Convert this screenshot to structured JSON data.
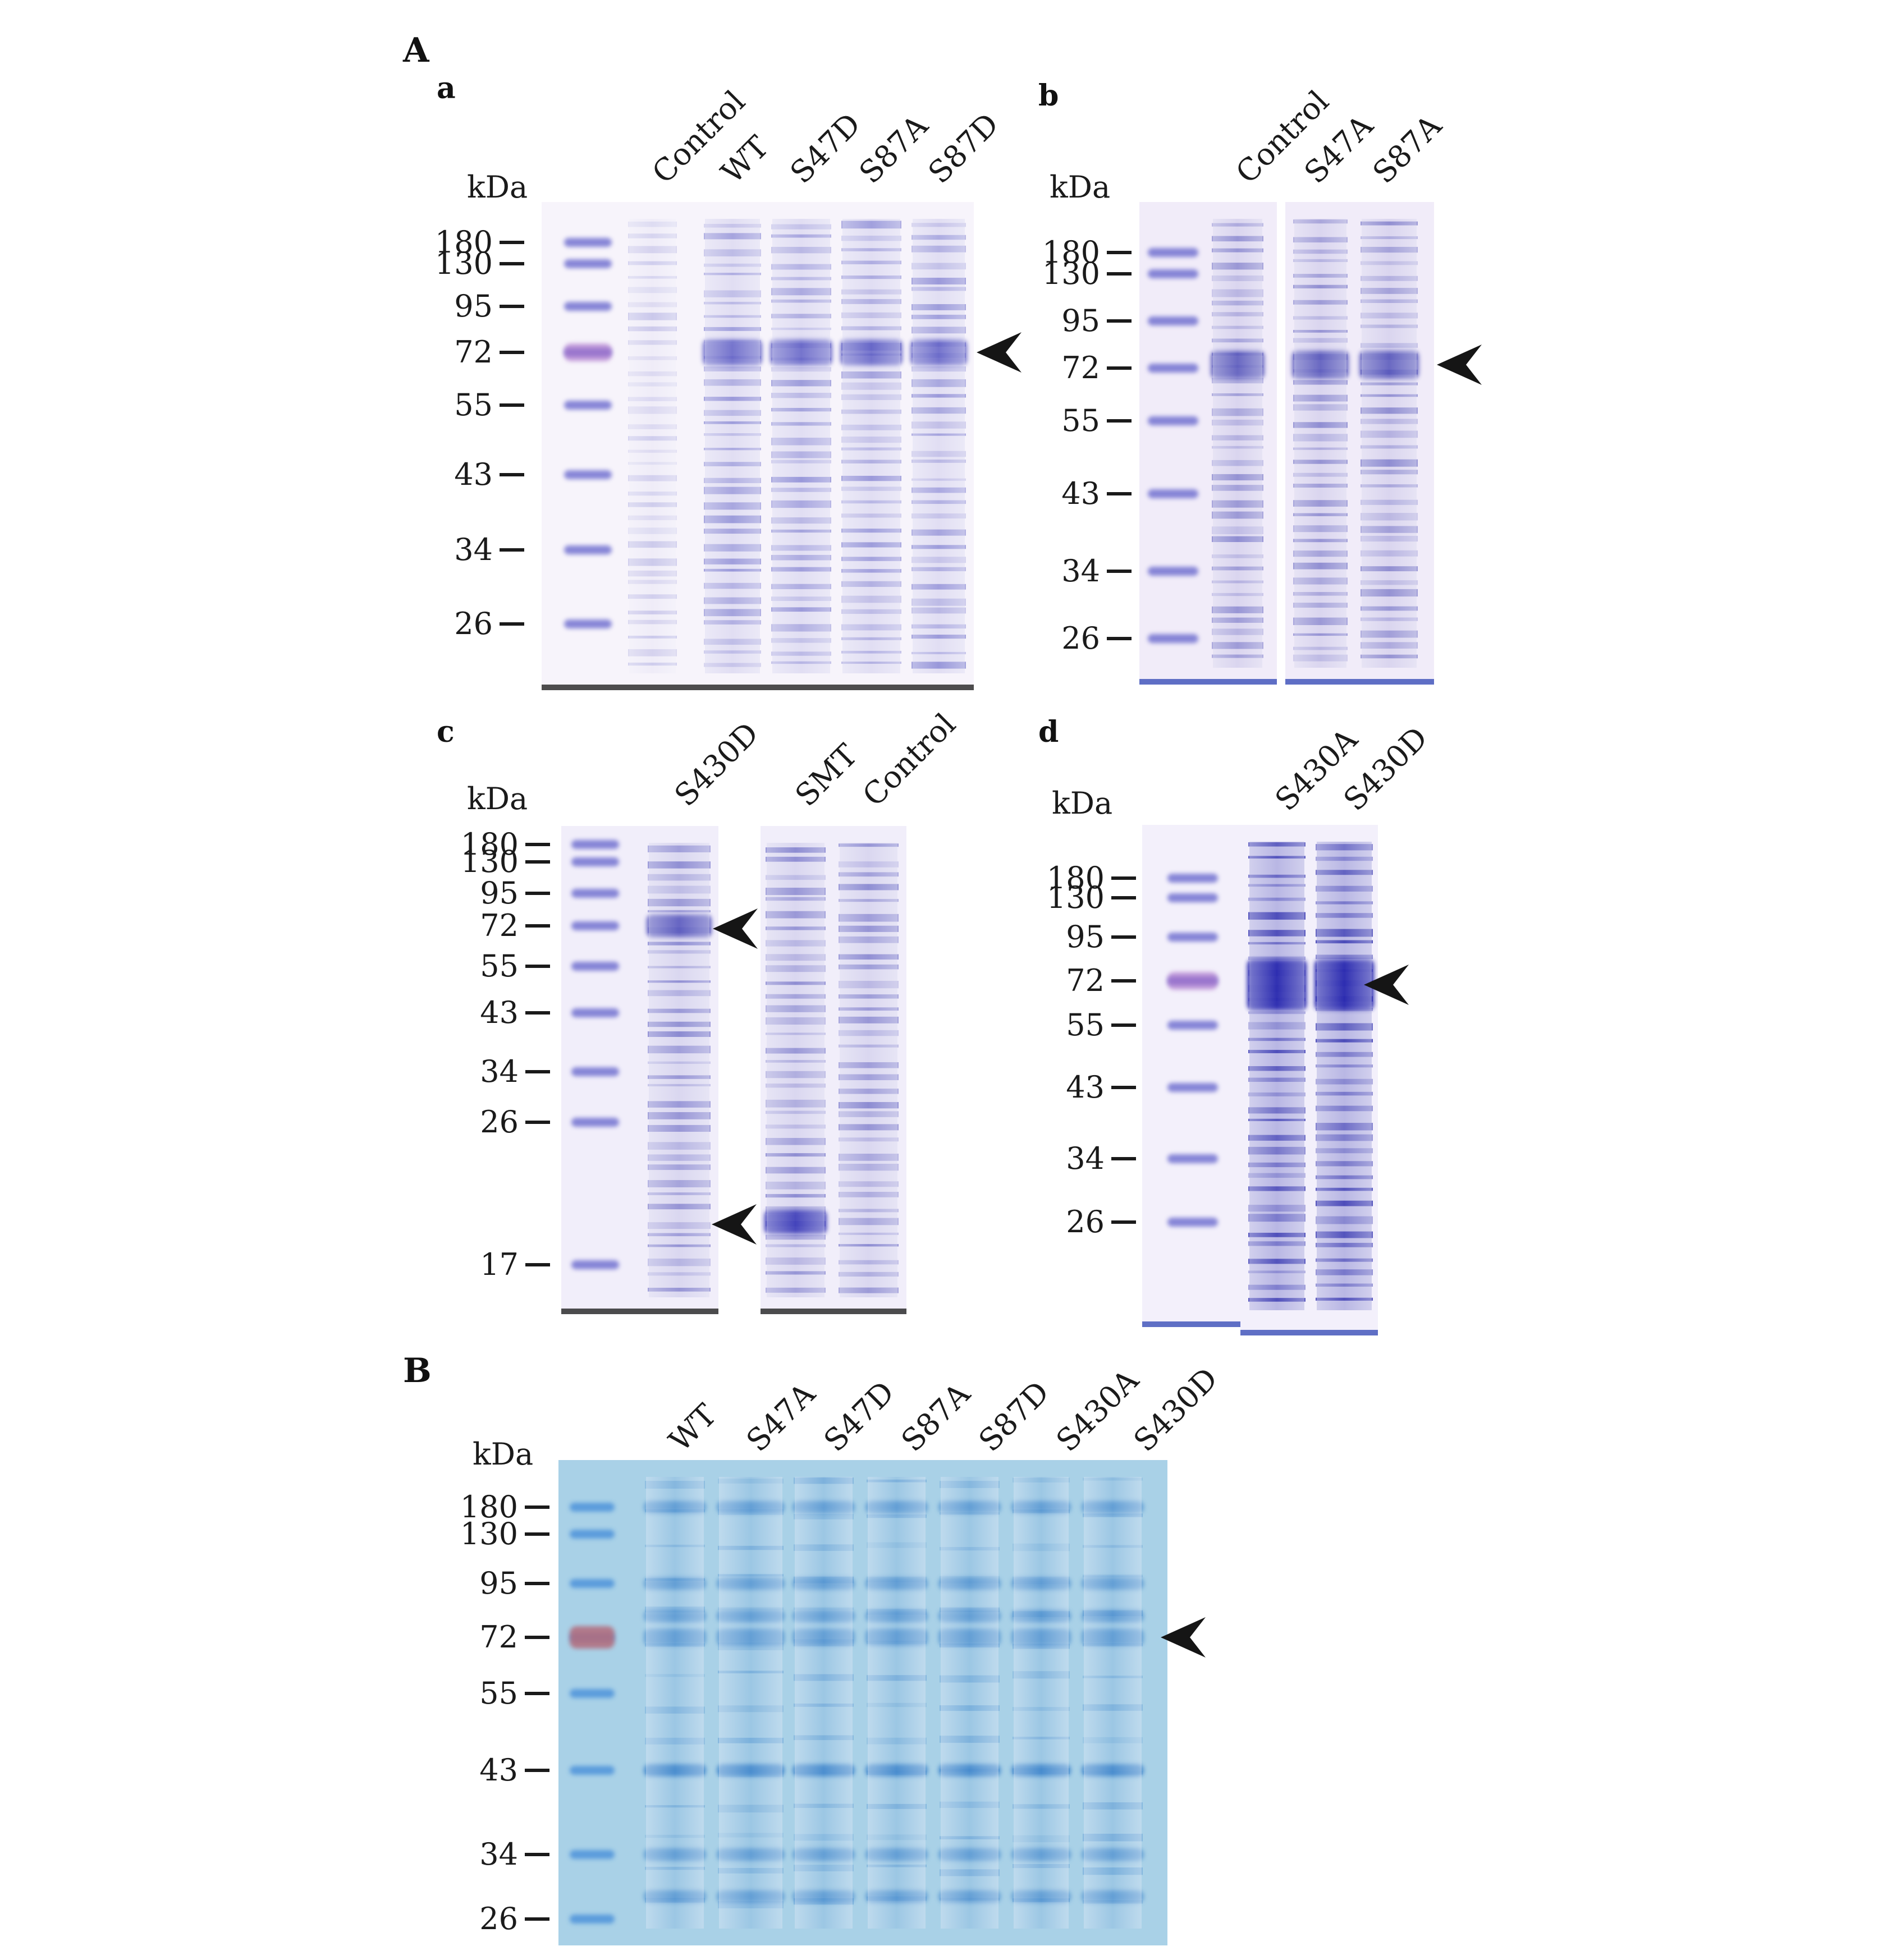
{
  "panel_A_label": "A",
  "panel_B_label": "B",
  "kda_label": "kDa",
  "subpanels": [
    {
      "id": "a",
      "label": "a",
      "lanes": [
        "Control",
        "WT",
        "S47D",
        "S87A",
        "S87D"
      ],
      "markers": [
        "180",
        "130",
        "95",
        "72",
        "55",
        "43",
        "34",
        "26"
      ]
    },
    {
      "id": "b",
      "label": "b",
      "lanes": [
        "Control",
        "S47A",
        "S87A"
      ],
      "markers": [
        "180",
        "130",
        "95",
        "72",
        "55",
        "43",
        "34",
        "26"
      ]
    },
    {
      "id": "c",
      "label": "c",
      "lanes": [
        "S430D",
        "SMT",
        "Control"
      ],
      "markers": [
        "180",
        "130",
        "95",
        "72",
        "55",
        "43",
        "34",
        "26",
        "17"
      ]
    },
    {
      "id": "d",
      "label": "d",
      "lanes": [
        "S430A",
        "S430D"
      ],
      "markers": [
        "180",
        "130",
        "95",
        "72",
        "55",
        "43",
        "34",
        "26"
      ]
    },
    {
      "id": "B",
      "lanes": [
        "WT",
        "S47A",
        "S47D",
        "S87A",
        "S87D",
        "S430A",
        "S430D"
      ],
      "markers": [
        "180",
        "130",
        "95",
        "72",
        "55",
        "43",
        "34",
        "26"
      ]
    }
  ],
  "colors": {
    "gel_stain": "#6c6cd0",
    "gel_bg": "#f4f1fb",
    "western_bg": "#a8d0e6",
    "western_band": "#4a8fd0"
  }
}
